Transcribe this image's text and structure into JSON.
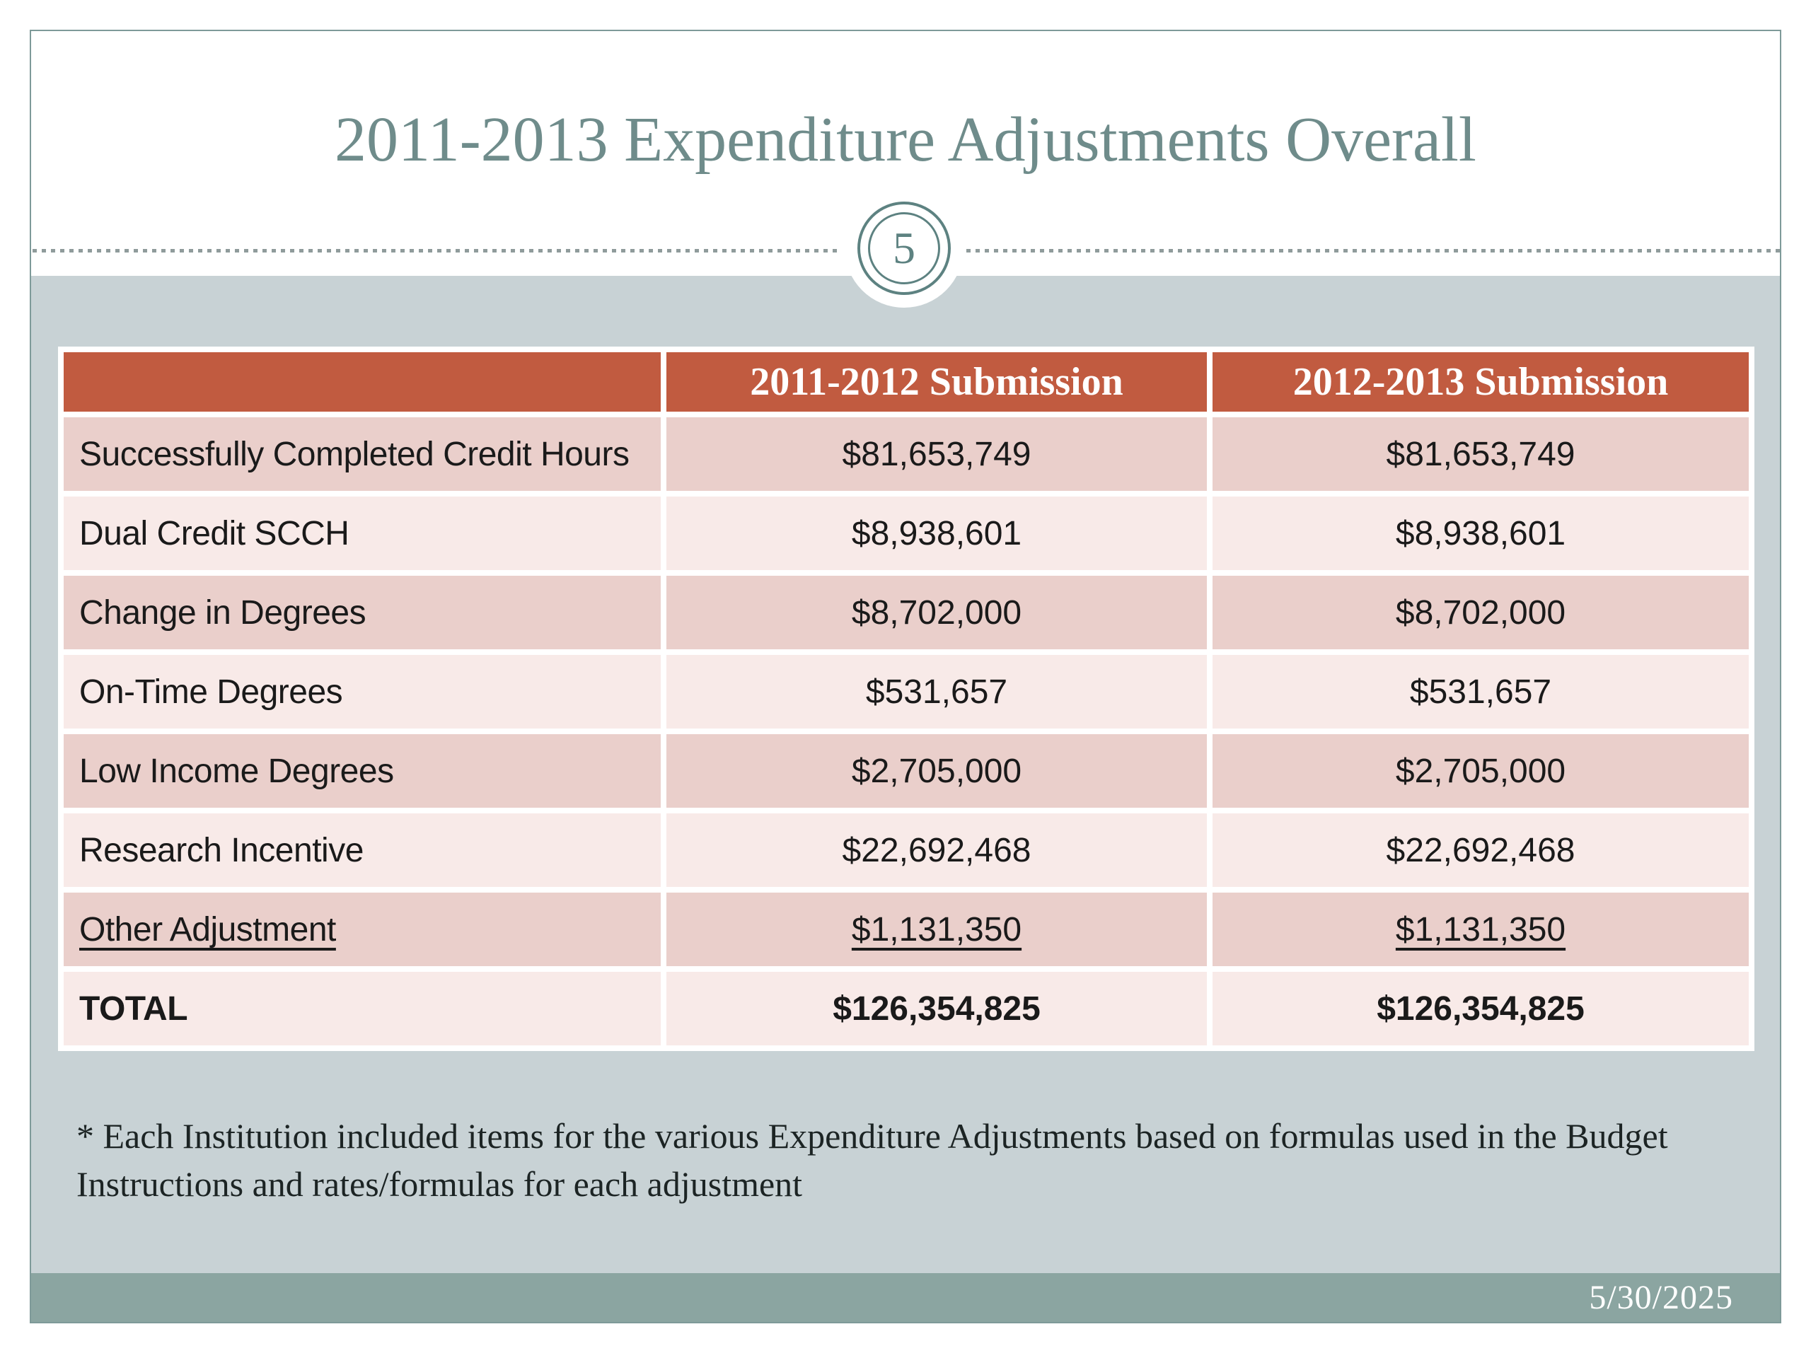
{
  "slide": {
    "title": "2011-2013 Expenditure Adjustments Overall",
    "slide_number": "5",
    "footer_date": "5/30/2025",
    "footnote_line1": "* Each Institution included items for the various Expenditure Adjustments based on formulas used in the Budget",
    "footnote_line2": "Instructions and rates/formulas for each adjustment"
  },
  "table": {
    "header": [
      "",
      "2011-2012 Submission",
      "2012-2013 Submission"
    ],
    "rows": [
      {
        "label": "Successfully Completed Credit Hours",
        "values": [
          "$81,653,749",
          "$81,653,749"
        ],
        "variant": "dark"
      },
      {
        "label": "Dual Credit SCCH",
        "values": [
          "$8,938,601",
          "$8,938,601"
        ],
        "variant": "light"
      },
      {
        "label": "Change in Degrees",
        "values": [
          "$8,702,000",
          "$8,702,000"
        ],
        "variant": "dark"
      },
      {
        "label": "On-Time Degrees",
        "values": [
          "$531,657",
          "$531,657"
        ],
        "variant": "light"
      },
      {
        "label": "Low Income Degrees",
        "values": [
          "$2,705,000",
          "$2,705,000"
        ],
        "variant": "dark"
      },
      {
        "label": "Research Incentive",
        "values": [
          "$22,692,468",
          "$22,692,468"
        ],
        "variant": "light"
      },
      {
        "label": "Other Adjustment",
        "values": [
          "$1,131,350",
          "$1,131,350"
        ],
        "variant": "dark",
        "underline": true
      },
      {
        "label": "TOTAL",
        "values": [
          "$126,354,825",
          "$126,354,825"
        ],
        "variant": "light",
        "bold": true
      }
    ]
  },
  "colors": {
    "title_teal": "#6f8c8b",
    "badge_ring_teal": "#5d8281",
    "frame_border": "#7e9a99",
    "content_background": "#c8d2d5",
    "footer_background": "#8ba5a1",
    "header_red": "#c15b40",
    "row_dark_pink": "#eacfcb",
    "row_light_pink": "#f8eae8",
    "body_text": "#1a1a1a",
    "header_text": "#ffffff"
  }
}
